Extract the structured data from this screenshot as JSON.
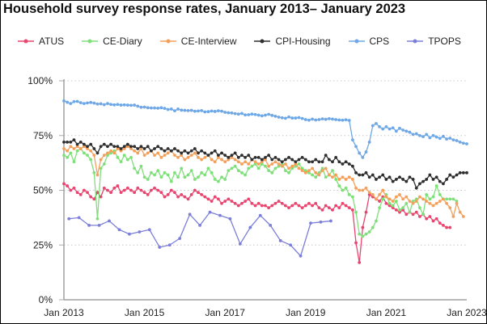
{
  "chart_data": {
    "type": "line",
    "title": "Household survey response rates, January 2013– January 2023",
    "xlabel": "",
    "ylabel": "",
    "ylim": [
      0,
      100
    ],
    "y_ticks": [
      "0%",
      "25%",
      "50%",
      "75%",
      "100%"
    ],
    "y_tick_values": [
      0,
      25,
      50,
      75,
      100
    ],
    "x_ticks": [
      "Jan 2013",
      "Jan 2015",
      "Jan 2017",
      "Jan 2019",
      "Jan 2021",
      "Jan 2023"
    ],
    "x_tick_months": [
      0,
      24,
      48,
      72,
      96,
      120
    ],
    "x_unit": "months since Jan 2013",
    "grid": "horizontal dotted",
    "legend_position": "top",
    "series": [
      {
        "name": "ATUS",
        "color": "#e8456f",
        "start_month": 0,
        "step": 1,
        "values": [
          53,
          52,
          50,
          51,
          49,
          48,
          50,
          49,
          47,
          46,
          49,
          47,
          51,
          50,
          49,
          51,
          52,
          49,
          50,
          51,
          50,
          49,
          51,
          50,
          49,
          48,
          50,
          51,
          50,
          49,
          47,
          48,
          50,
          49,
          47,
          48,
          47,
          46,
          48,
          50,
          49,
          48,
          47,
          46,
          45,
          47,
          46,
          44,
          45,
          46,
          45,
          44,
          43,
          44,
          45,
          46,
          44,
          43,
          44,
          43,
          43,
          42,
          43,
          44,
          45,
          44,
          43,
          42,
          43,
          44,
          43,
          42,
          43,
          44,
          43,
          44,
          42,
          41,
          43,
          42,
          41,
          43,
          42,
          44,
          43,
          42,
          41,
          26,
          17,
          33,
          40,
          48,
          47,
          46,
          45,
          47,
          44,
          43,
          42,
          41,
          40,
          41,
          39,
          40,
          39,
          40,
          38,
          39,
          37,
          38,
          36,
          37,
          35,
          34,
          33,
          33
        ]
      },
      {
        "name": "CE-Diary",
        "color": "#7fe07a",
        "start_month": 0,
        "step": 1,
        "values": [
          66,
          65,
          67,
          63,
          68,
          69,
          67,
          66,
          64,
          58,
          37,
          60,
          62,
          66,
          67,
          68,
          65,
          63,
          66,
          64,
          65,
          60,
          58,
          61,
          56,
          55,
          58,
          57,
          59,
          56,
          58,
          57,
          54,
          58,
          56,
          60,
          56,
          57,
          59,
          55,
          56,
          58,
          57,
          60,
          58,
          55,
          54,
          56,
          55,
          59,
          60,
          61,
          59,
          58,
          57,
          60,
          61,
          62,
          60,
          62,
          61,
          59,
          58,
          60,
          61,
          62,
          59,
          58,
          60,
          61,
          62,
          60,
          59,
          58,
          57,
          56,
          58,
          60,
          56,
          57,
          59,
          55,
          52,
          50,
          51,
          48,
          47,
          40,
          30,
          29,
          30,
          31,
          33,
          36,
          42,
          46,
          48,
          44,
          43,
          45,
          41,
          42,
          44,
          40,
          45,
          46,
          42,
          39,
          48,
          46,
          47,
          52,
          48,
          46,
          46,
          46,
          46,
          45
        ]
      },
      {
        "name": "CE-Interview",
        "color": "#f5a05a",
        "start_month": 0,
        "step": 1,
        "values": [
          69,
          68,
          70,
          69,
          70,
          69,
          70,
          69,
          68,
          66,
          57,
          64,
          66,
          67,
          68,
          67,
          69,
          68,
          69,
          70,
          69,
          68,
          67,
          69,
          66,
          67,
          68,
          66,
          67,
          65,
          66,
          67,
          68,
          66,
          65,
          66,
          64,
          65,
          66,
          67,
          65,
          64,
          65,
          66,
          64,
          63,
          65,
          64,
          63,
          64,
          65,
          64,
          63,
          62,
          63,
          62,
          64,
          63,
          62,
          63,
          64,
          61,
          62,
          63,
          62,
          61,
          62,
          60,
          61,
          62,
          60,
          59,
          58,
          59,
          60,
          58,
          57,
          59,
          60,
          57,
          56,
          57,
          55,
          56,
          55,
          56,
          55,
          51,
          50,
          50,
          51,
          49,
          48,
          46,
          48,
          50,
          47,
          46,
          45,
          47,
          48,
          46,
          47,
          45,
          44,
          45,
          47,
          46,
          45,
          44,
          43,
          44,
          45,
          46,
          44,
          42,
          38,
          44,
          40,
          38
        ]
      },
      {
        "name": "CPI-Housing",
        "color": "#2f2f2f",
        "start_month": 0,
        "step": 1,
        "values": [
          72,
          72,
          72,
          73,
          71,
          72,
          71,
          70,
          71,
          69,
          67,
          70,
          71,
          70,
          71,
          70,
          70,
          69,
          70,
          71,
          70,
          70,
          69,
          70,
          69,
          70,
          68,
          69,
          70,
          69,
          68,
          69,
          68,
          69,
          68,
          67,
          68,
          67,
          68,
          69,
          67,
          68,
          67,
          66,
          67,
          68,
          66,
          67,
          66,
          65,
          66,
          67,
          65,
          66,
          65,
          66,
          64,
          65,
          65,
          64,
          65,
          66,
          64,
          65,
          64,
          63,
          64,
          65,
          64,
          63,
          64,
          65,
          64,
          63,
          63,
          64,
          63,
          63,
          66,
          64,
          63,
          65,
          63,
          62,
          63,
          62,
          61,
          58,
          57,
          57,
          58,
          56,
          57,
          55,
          56,
          57,
          55,
          56,
          54,
          55,
          56,
          55,
          54,
          56,
          55,
          51,
          53,
          54,
          55,
          57,
          55,
          56,
          54,
          53,
          55,
          57,
          56,
          57,
          58,
          58,
          58
        ]
      },
      {
        "name": "CPS",
        "color": "#6fa8e6",
        "start_month": 0,
        "step": 1,
        "values": [
          90.8,
          90.2,
          89.6,
          90.5,
          90.6,
          90.0,
          89.6,
          89.9,
          90.1,
          89.8,
          89.4,
          89.5,
          89.1,
          89.6,
          89.2,
          89.0,
          89.2,
          88.9,
          89.0,
          88.9,
          88.8,
          88.9,
          88.4,
          87.9,
          88.0,
          87.7,
          87.6,
          87.6,
          87.5,
          87.7,
          87.4,
          86.9,
          87.1,
          86.3,
          87.1,
          86.6,
          86.5,
          86.4,
          86.5,
          86.1,
          86.2,
          86.4,
          85.8,
          85.9,
          86.2,
          86.0,
          86.3,
          86.1,
          85.6,
          85.4,
          85.3,
          85.0,
          84.8,
          85.1,
          84.4,
          84.5,
          84.8,
          84.6,
          84.3,
          84.0,
          84.3,
          84.7,
          84.2,
          83.8,
          83.4,
          83.1,
          82.9,
          83.5,
          83.0,
          83.0,
          83.2,
          82.8,
          82.3,
          82.0,
          82.5,
          82.1,
          82.3,
          82.6,
          82.4,
          82.7,
          82.5,
          82.3,
          82.1,
          82.0,
          82.2,
          81.9,
          73.0,
          70.0,
          67.0,
          65.0,
          67.5,
          72.0,
          79.5,
          80.5,
          79.0,
          78.0,
          79.0,
          78.0,
          78.5,
          77.0,
          78.3,
          77.5,
          77.0,
          76.5,
          75.5,
          75.8,
          75.0,
          74.5,
          75.5,
          74.0,
          75.0,
          74.3,
          73.7,
          74.6,
          73.4,
          73.8,
          73.0,
          72.7,
          72.0,
          71.5,
          71.2
        ]
      },
      {
        "name": "TPOPS",
        "color": "#7b7fd9",
        "start_month": 1.5,
        "step": 3,
        "values": [
          37,
          37.5,
          34,
          34,
          36,
          32,
          30,
          31,
          32,
          24,
          25,
          28,
          39,
          34,
          40,
          38.5,
          37,
          25.5,
          33,
          38.5,
          34,
          27,
          25,
          20,
          35,
          35.5,
          36
        ]
      }
    ]
  },
  "legend": [
    "ATUS",
    "CE-Diary",
    "CE-Interview",
    "CPI-Housing",
    "CPS",
    "TPOPS"
  ]
}
